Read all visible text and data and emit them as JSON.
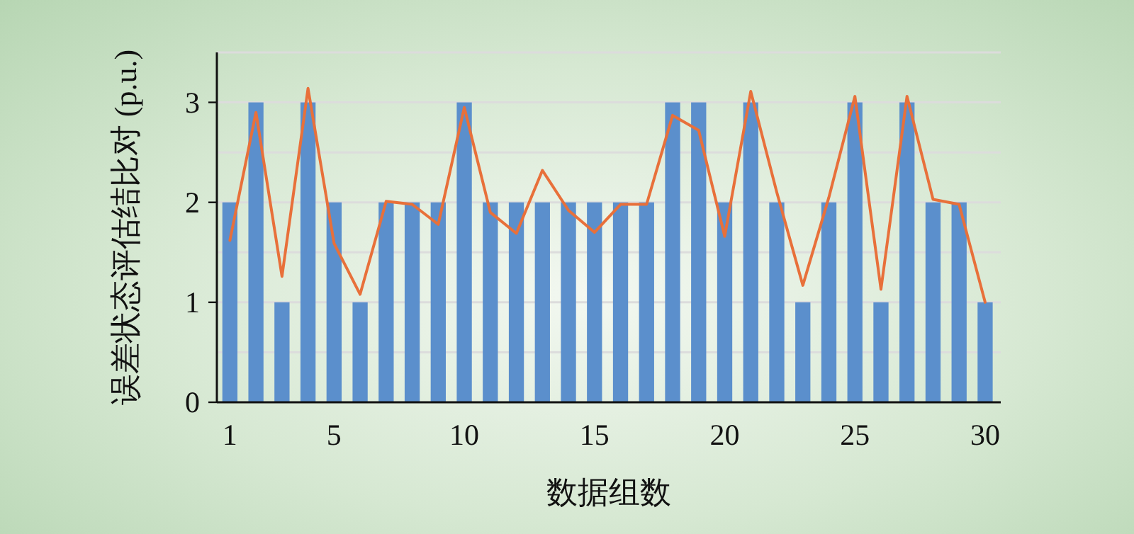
{
  "chart_data": {
    "type": "bar",
    "xlabel": "数据组数",
    "ylabel": "误差状态评估结比对 (p.u.)",
    "x": [
      1,
      2,
      3,
      4,
      5,
      6,
      7,
      8,
      9,
      10,
      11,
      12,
      13,
      14,
      15,
      16,
      17,
      18,
      19,
      20,
      21,
      22,
      23,
      24,
      25,
      26,
      27,
      28,
      29,
      30
    ],
    "series": [
      {
        "color": "#5b8fcc",
        "values": [
          2,
          3,
          1,
          3,
          2,
          1,
          2,
          2,
          2,
          3,
          2,
          2,
          2,
          2,
          2,
          2,
          2,
          3,
          3,
          2,
          3,
          2,
          1,
          2,
          3,
          1,
          3,
          2,
          2,
          1
        ]
      },
      {
        "type": "line",
        "color": "#e8703a",
        "values": [
          1.62,
          2.9,
          1.26,
          3.14,
          1.59,
          1.08,
          2.01,
          1.98,
          1.78,
          2.95,
          1.9,
          1.69,
          2.32,
          1.92,
          1.7,
          1.98,
          1.98,
          2.87,
          2.72,
          1.66,
          3.11,
          2.1,
          1.17,
          2.05,
          3.06,
          1.13,
          3.06,
          2.03,
          1.98,
          1.0
        ]
      }
    ],
    "xlim": [
      0.5,
      30.6
    ],
    "xticks": [
      1,
      5,
      10,
      15,
      20,
      25,
      30
    ],
    "ylim": [
      0,
      3.5
    ],
    "yticks": [
      0,
      {
        "value": 0.5,
        "label": null
      },
      1,
      {
        "value": 1.5,
        "label": null
      },
      2,
      {
        "value": 2.5,
        "label": null
      },
      3,
      {
        "value": 3.5,
        "label": null
      }
    ],
    "grid": "y"
  }
}
